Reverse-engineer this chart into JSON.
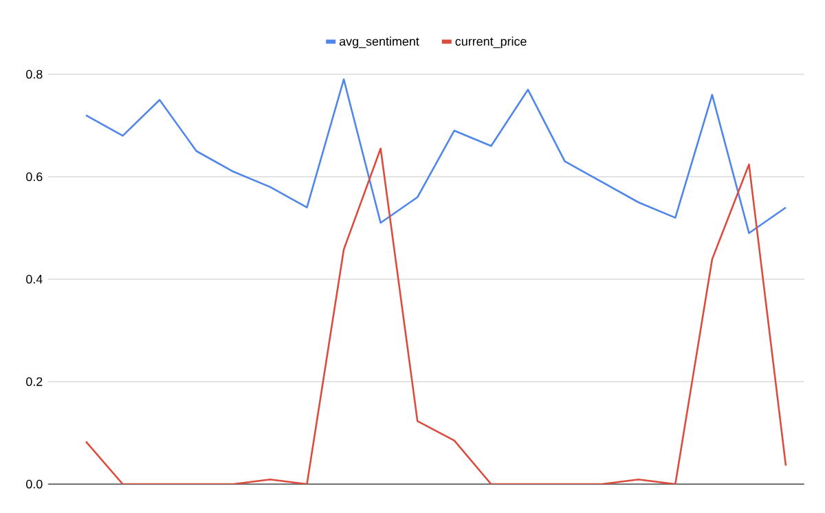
{
  "chart_data": {
    "type": "line",
    "categories": [
      null,
      null,
      null,
      null,
      null,
      null,
      null,
      null,
      null,
      null,
      null,
      null,
      null,
      null,
      null,
      null,
      null,
      null,
      null,
      null
    ],
    "series": [
      {
        "name": "avg_sentiment",
        "color": "#4f86e8",
        "values": [
          0.72,
          0.68,
          0.75,
          0.65,
          0.61,
          0.58,
          0.54,
          0.79,
          0.51,
          0.56,
          0.69,
          0.66,
          0.77,
          0.63,
          0.59,
          0.55,
          0.52,
          0.76,
          0.49,
          0.54
        ]
      },
      {
        "name": "current_price",
        "color": "#db4c3f",
        "values": [
          0.083,
          0,
          0,
          0,
          0,
          0.009,
          0,
          0.458,
          0.655,
          0.123,
          0.085,
          0,
          0,
          0,
          0,
          0.009,
          0,
          0.439,
          0.624,
          0.036
        ]
      }
    ],
    "ylim": [
      0,
      0.8
    ],
    "yticks": [
      {
        "value": 0,
        "label": "0.0"
      },
      0.2,
      0.4,
      0.6,
      0.8
    ],
    "grid": "y",
    "legend": "top",
    "tick_labels": "y",
    "marker": "none",
    "line_style": "solid"
  }
}
